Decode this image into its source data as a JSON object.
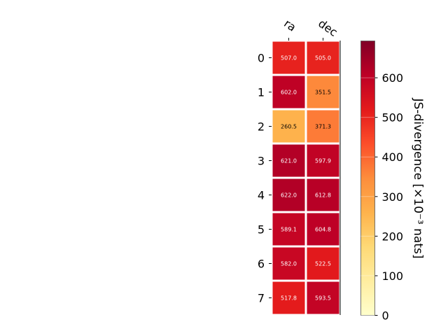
{
  "chart_data": {
    "type": "heatmap",
    "columns": [
      "ra",
      "dec"
    ],
    "rows": [
      "0",
      "1",
      "2",
      "3",
      "4",
      "5",
      "6",
      "7"
    ],
    "values": [
      [
        507.0,
        505.0
      ],
      [
        602.0,
        351.5
      ],
      [
        260.5,
        371.3
      ],
      [
        621.0,
        597.9
      ],
      [
        622.0,
        612.8
      ],
      [
        589.1,
        604.8
      ],
      [
        582.0,
        522.5
      ],
      [
        517.8,
        593.5
      ]
    ],
    "cell_labels": [
      [
        "507.0",
        "505.0"
      ],
      [
        "602.0",
        "351.5"
      ],
      [
        "260.5",
        "371.3"
      ],
      [
        "621.0",
        "597.9"
      ],
      [
        "622.0",
        "612.8"
      ],
      [
        "589.1",
        "604.8"
      ],
      [
        "582.0",
        "522.5"
      ],
      [
        "517.8",
        "593.5"
      ]
    ],
    "colorbar": {
      "label": "JS-divergence [×10⁻³ nats]",
      "range": [
        0,
        693
      ],
      "ticks": [
        0,
        100,
        200,
        300,
        400,
        500,
        600
      ],
      "tick_labels": [
        "0",
        "100",
        "200",
        "300",
        "400",
        "500",
        "600"
      ],
      "colormap": "YlOrRd"
    }
  }
}
